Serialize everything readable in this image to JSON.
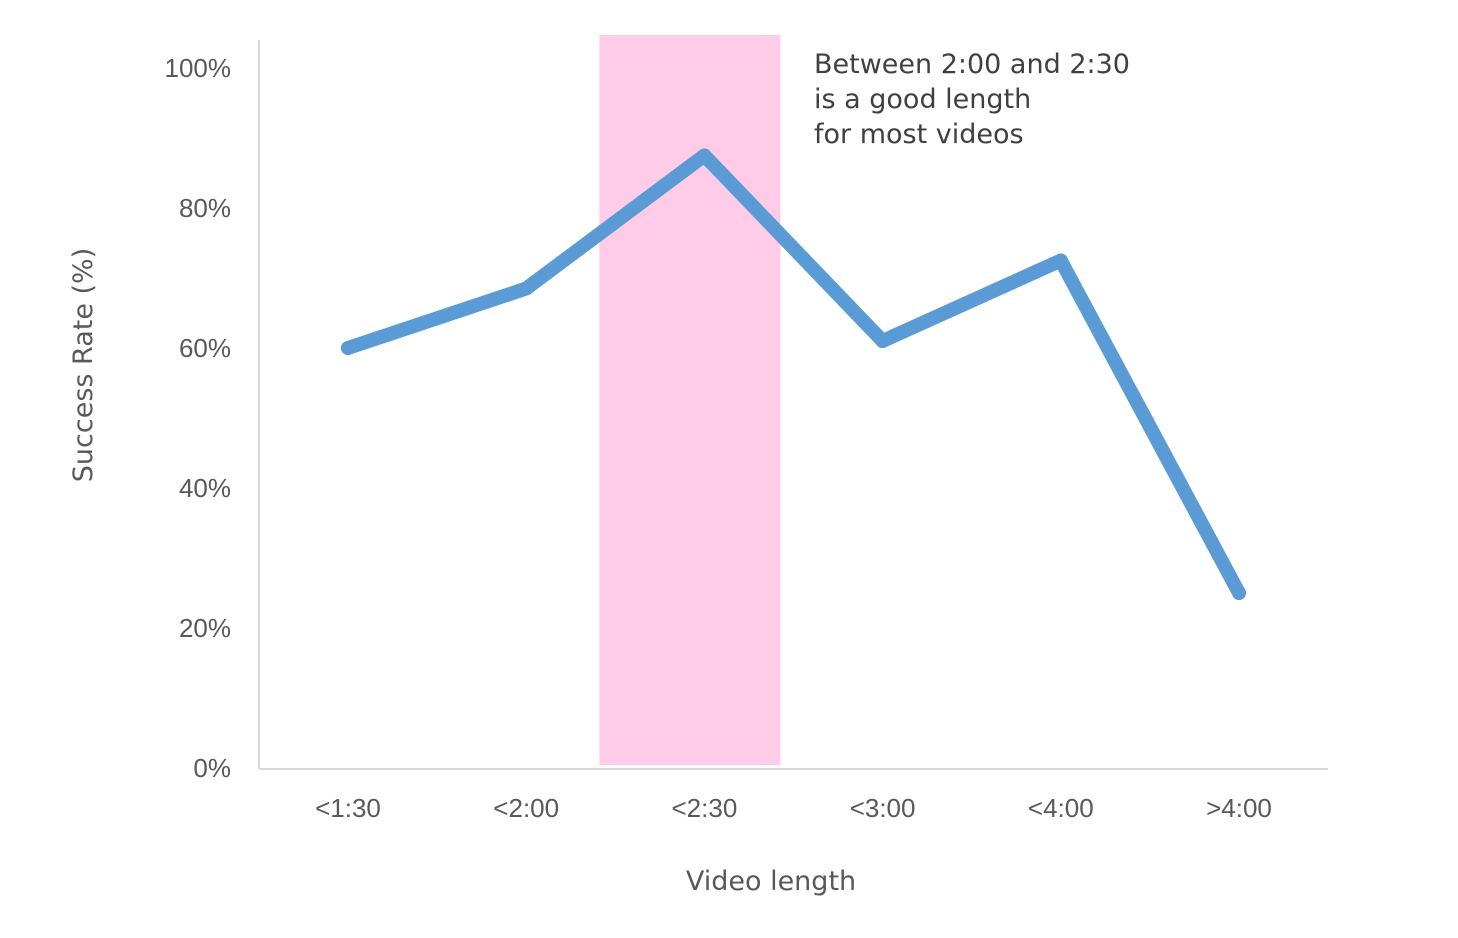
{
  "chart_data": {
    "type": "line",
    "categories": [
      "<1:30",
      "<2:00",
      "<2:30",
      "<3:00",
      "<4:00",
      ">4:00"
    ],
    "series": [
      {
        "values": [
          60,
          68.5,
          87.5,
          61,
          72.5,
          25
        ]
      }
    ],
    "xlabel": "Video length",
    "ylabel": "Success Rate (%)",
    "ylim": [
      0,
      100
    ],
    "yticks": [
      0,
      20,
      40,
      60,
      80,
      100
    ],
    "ytick_labels": [
      "0%",
      "20%",
      "40%",
      "60%",
      "80%",
      "100%"
    ],
    "grid": false,
    "highlight": {
      "category": "<2:30",
      "color": "#FFCCE8"
    },
    "annotation": {
      "lines": [
        "Between 2:00 and 2:30",
        "is a good length",
        "for most videos"
      ]
    },
    "line_color": "#5B9BD5",
    "axis_color": "#D9D9D9",
    "text_color": "#595959"
  }
}
